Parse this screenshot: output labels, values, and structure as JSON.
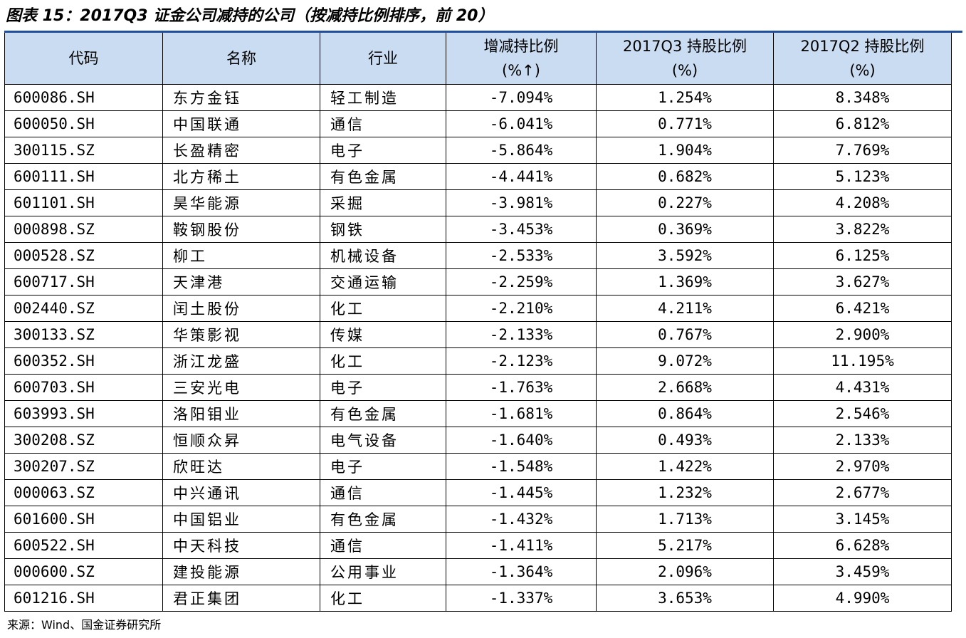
{
  "title": "图表 15：2017Q3 证金公司减持的公司（按减持比例排序，前 20）",
  "headers": {
    "code": "代码",
    "name": "名称",
    "industry": "行业",
    "change_line1": "增减持比例",
    "change_line2": "(%↑)",
    "q3_line1": "2017Q3 持股比例",
    "q3_line2": "(%)",
    "q2_line1": "2017Q2 持股比例",
    "q2_line2": "(%)"
  },
  "rows": [
    {
      "code": "600086.SH",
      "name": "东方金钰",
      "industry": "轻工制造",
      "change": "-7.094%",
      "q3": "1.254%",
      "q2": "8.348%"
    },
    {
      "code": "600050.SH",
      "name": "中国联通",
      "industry": "通信",
      "change": "-6.041%",
      "q3": "0.771%",
      "q2": "6.812%"
    },
    {
      "code": "300115.SZ",
      "name": "长盈精密",
      "industry": "电子",
      "change": "-5.864%",
      "q3": "1.904%",
      "q2": "7.769%"
    },
    {
      "code": "600111.SH",
      "name": "北方稀土",
      "industry": "有色金属",
      "change": "-4.441%",
      "q3": "0.682%",
      "q2": "5.123%"
    },
    {
      "code": "601101.SH",
      "name": "昊华能源",
      "industry": "采掘",
      "change": "-3.981%",
      "q3": "0.227%",
      "q2": "4.208%"
    },
    {
      "code": "000898.SZ",
      "name": "鞍钢股份",
      "industry": "钢铁",
      "change": "-3.453%",
      "q3": "0.369%",
      "q2": "3.822%"
    },
    {
      "code": "000528.SZ",
      "name": "柳工",
      "industry": "机械设备",
      "change": "-2.533%",
      "q3": "3.592%",
      "q2": "6.125%"
    },
    {
      "code": "600717.SH",
      "name": "天津港",
      "industry": "交通运输",
      "change": "-2.259%",
      "q3": "1.369%",
      "q2": "3.627%"
    },
    {
      "code": "002440.SZ",
      "name": "闰土股份",
      "industry": "化工",
      "change": "-2.210%",
      "q3": "4.211%",
      "q2": "6.421%"
    },
    {
      "code": "300133.SZ",
      "name": "华策影视",
      "industry": "传媒",
      "change": "-2.133%",
      "q3": "0.767%",
      "q2": "2.900%"
    },
    {
      "code": "600352.SH",
      "name": "浙江龙盛",
      "industry": "化工",
      "change": "-2.123%",
      "q3": "9.072%",
      "q2": "11.195%"
    },
    {
      "code": "600703.SH",
      "name": "三安光电",
      "industry": "电子",
      "change": "-1.763%",
      "q3": "2.668%",
      "q2": "4.431%"
    },
    {
      "code": "603993.SH",
      "name": "洛阳钼业",
      "industry": "有色金属",
      "change": "-1.681%",
      "q3": "0.864%",
      "q2": "2.546%"
    },
    {
      "code": "300208.SZ",
      "name": "恒顺众昇",
      "industry": "电气设备",
      "change": "-1.640%",
      "q3": "0.493%",
      "q2": "2.133%"
    },
    {
      "code": "300207.SZ",
      "name": "欣旺达",
      "industry": "电子",
      "change": "-1.548%",
      "q3": "1.422%",
      "q2": "2.970%"
    },
    {
      "code": "000063.SZ",
      "name": "中兴通讯",
      "industry": "通信",
      "change": "-1.445%",
      "q3": "1.232%",
      "q2": "2.677%"
    },
    {
      "code": "601600.SH",
      "name": "中国铝业",
      "industry": "有色金属",
      "change": "-1.432%",
      "q3": "1.713%",
      "q2": "3.145%"
    },
    {
      "code": "600522.SH",
      "name": "中天科技",
      "industry": "通信",
      "change": "-1.411%",
      "q3": "5.217%",
      "q2": "6.628%"
    },
    {
      "code": "000600.SZ",
      "name": "建投能源",
      "industry": "公用事业",
      "change": "-1.364%",
      "q3": "2.096%",
      "q2": "3.459%"
    },
    {
      "code": "601216.SH",
      "name": "君正集团",
      "industry": "化工",
      "change": "-1.337%",
      "q3": "3.653%",
      "q2": "4.990%"
    }
  ],
  "source": "来源：Wind、国金证券研究所",
  "colors": {
    "header_bg": "#c9dcf1",
    "title_rule": "#1f4e9c"
  }
}
